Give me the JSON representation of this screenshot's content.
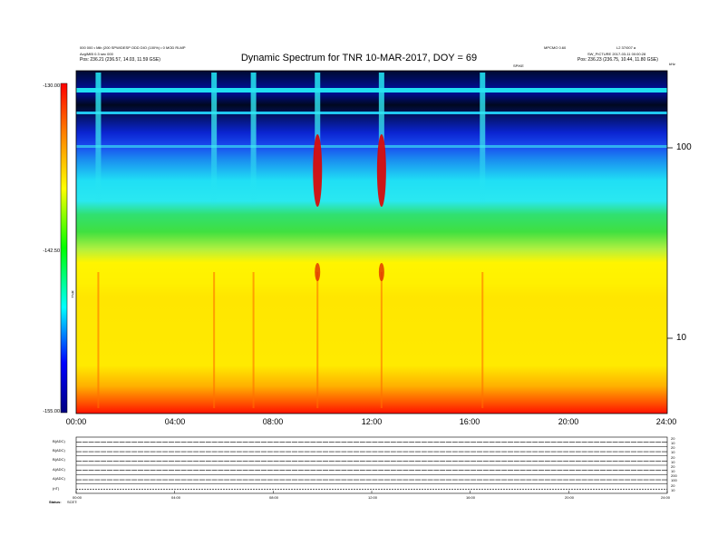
{
  "header": {
    "left_line1": "000 000 • Mib (200 SPW/DESP ODD DIO (100%) • 0 MOD RLMP",
    "left_line2": "Avg/MIB 0.3 sec 000",
    "left_pos_label": "Pos:",
    "left_pos_value": "236.21 (236.57, 14.03, 11.59 GSE)",
    "right_line1": "MPCMO 0.60",
    "right_line1b": "L2 37/007 a",
    "right_line2": "SW_PICTURE 2017-03-11 00:00:28",
    "right_pos_label": "Pos:",
    "right_pos_value": "236.23 (236.75, 10.44, 11.80 GSE)",
    "center_small": "SPIKE",
    "right_small": "kHz"
  },
  "chart_data": {
    "type": "heatmap",
    "title": "Dynamic Spectrum for TNR 10-MAR-2017, DOY = 69",
    "colorbar": {
      "label": "TNR",
      "ticks": [
        "-130.00",
        "-142.50",
        "-155.00"
      ],
      "range": [
        -155,
        -130
      ],
      "colors": [
        "#000080",
        "#0000ff",
        "#00ffff",
        "#00ff00",
        "#ffff00",
        "#ff8000",
        "#ff0000"
      ]
    },
    "x_ticks": [
      "00:00",
      "04:00",
      "08:00",
      "12:00",
      "16:00",
      "20:00",
      "24:00"
    ],
    "x_range_hours": [
      0,
      24
    ],
    "y_axis": {
      "scale": "log",
      "unit": "kHz",
      "ticks": [
        "100",
        "10"
      ],
      "range": [
        4,
        256
      ]
    },
    "bands": [
      {
        "name": "dark top band",
        "color": "#000820"
      },
      {
        "name": "blue band",
        "color": "#1030e0"
      },
      {
        "name": "cyan band",
        "color": "#20e0f0"
      },
      {
        "name": "green band",
        "color": "#30e040"
      },
      {
        "name": "yellow band",
        "color": "#fff200"
      },
      {
        "name": "orange floor",
        "color": "#ff6000"
      }
    ],
    "bursts_hours": [
      0.9,
      5.6,
      7.2,
      9.8,
      12.4,
      16.5
    ],
    "strong_burst_hours": [
      9.8,
      12.4
    ]
  },
  "panels": [
    {
      "label": "B(ADC)",
      "right_ticks": [
        "20",
        "10"
      ]
    },
    {
      "label": "B(ADC)",
      "right_ticks": [
        "20",
        "10"
      ]
    },
    {
      "label": "B(ADC)",
      "right_ticks": [
        "20",
        "10"
      ]
    },
    {
      "label": "A(ADC)",
      "right_ticks": [
        "20",
        "10"
      ]
    },
    {
      "label": "A(ADC)",
      "right_ticks": [
        "200",
        "100"
      ]
    },
    {
      "label": "(nT)",
      "right_ticks": [
        "20",
        "10"
      ]
    }
  ],
  "panel_x_ticks": [
    "00:00",
    "04:00",
    "08:00",
    "12:00",
    "16:00",
    "20:00",
    "24:00"
  ],
  "footer": {
    "label1": "Status:",
    "label2": "SCET:"
  }
}
